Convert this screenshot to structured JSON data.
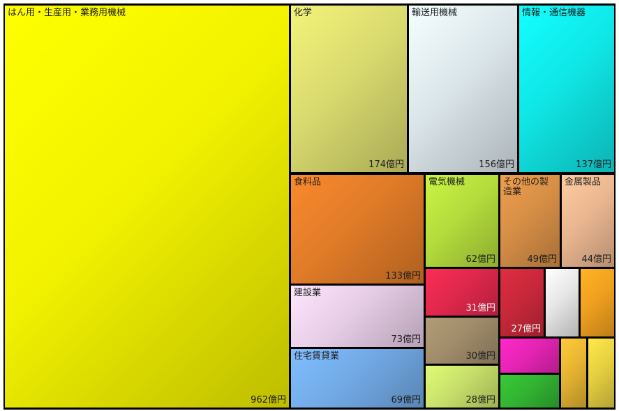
{
  "chart_data": {
    "type": "treemap",
    "title": "",
    "items": [
      {
        "key": "hanyou",
        "name": "はん用・生産用・業務用機械",
        "value": 962,
        "value_label": "962億円",
        "color": "#f2f200"
      },
      {
        "key": "kagaku",
        "name": "化学",
        "value": 174,
        "value_label": "174億円",
        "color": "#d9da6e"
      },
      {
        "key": "yuso",
        "name": "輸送用機械",
        "value": 156,
        "value_label": "156億円",
        "color": "#dbe6ea"
      },
      {
        "key": "joho",
        "name": "情報・通信機器",
        "value": 137,
        "value_label": "137億円",
        "color": "#10e6e6"
      },
      {
        "key": "shokuryo",
        "name": "食料品",
        "value": 133,
        "value_label": "133億円",
        "color": "#e07b28"
      },
      {
        "key": "kensetsu",
        "name": "建設業",
        "value": 73,
        "value_label": "73億円",
        "color": "#e6cde6"
      },
      {
        "key": "jutaku",
        "name": "住宅賃貸業",
        "value": 69,
        "value_label": "69億円",
        "color": "#72aae6"
      },
      {
        "key": "denki",
        "name": "電気機械",
        "value": 62,
        "value_label": "62億円",
        "color": "#b4dc3c"
      },
      {
        "key": "sonota",
        "name": "その他の製造業",
        "value": 49,
        "value_label": "49億円",
        "color": "#d68e46"
      },
      {
        "key": "kinzoku",
        "name": "金属製品",
        "value": 44,
        "value_label": "44億円",
        "color": "#eab690"
      },
      {
        "key": "u31",
        "name": "",
        "value": 31,
        "value_label": "31億円",
        "color": "#e0284c"
      },
      {
        "key": "u30",
        "name": "",
        "value": 30,
        "value_label": "30億円",
        "color": "#a08c6a"
      },
      {
        "key": "u28",
        "name": "",
        "value": 28,
        "value_label": "28億円",
        "color": "#c8e06a"
      },
      {
        "key": "u27",
        "name": "",
        "value": 27,
        "value_label": "27億円",
        "color": "#c8283a"
      },
      {
        "key": "s1",
        "name": "",
        "value": 12,
        "value_label": "",
        "color": "#e6e6e6"
      },
      {
        "key": "s2",
        "name": "",
        "value": 12,
        "value_label": "",
        "color": "#f0a020"
      },
      {
        "key": "s3",
        "name": "",
        "value": 11,
        "value_label": "",
        "color": "#e624b4"
      },
      {
        "key": "s4",
        "name": "",
        "value": 10,
        "value_label": "",
        "color": "#32b432"
      },
      {
        "key": "s5",
        "name": "",
        "value": 9,
        "value_label": "",
        "color": "#e6b432"
      },
      {
        "key": "s6",
        "name": "",
        "value": 9,
        "value_label": "",
        "color": "#e6d040"
      }
    ]
  }
}
